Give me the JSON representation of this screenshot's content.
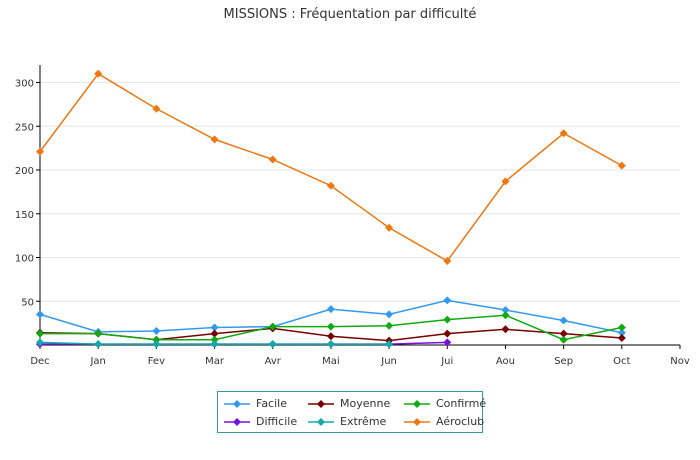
{
  "chart_data": {
    "type": "line",
    "title": "MISSIONS : Fréquentation par difficulté",
    "categories": [
      "Dec",
      "Jan",
      "Fev",
      "Mar",
      "Avr",
      "Mai",
      "Jun",
      "Jui",
      "Aou",
      "Sep",
      "Oct",
      "Nov"
    ],
    "ylim": [
      0,
      320
    ],
    "yticks": [
      50,
      100,
      150,
      200,
      250,
      300
    ],
    "grid": true,
    "legend_placement": "bottom",
    "series": [
      {
        "name": "Facile",
        "color": "#3399ee",
        "values": [
          35,
          15,
          16,
          20,
          21,
          41,
          35,
          51,
          40,
          28,
          14,
          null
        ]
      },
      {
        "name": "Moyenne",
        "color": "#770000",
        "values": [
          14,
          13,
          6,
          13,
          19,
          10,
          5,
          13,
          18,
          13,
          8,
          null
        ]
      },
      {
        "name": "Confirmé",
        "color": "#11aa11",
        "values": [
          13,
          13,
          6,
          6,
          21,
          21,
          22,
          29,
          34,
          6,
          20,
          null
        ]
      },
      {
        "name": "Difficile",
        "color": "#7711dd",
        "values": [
          1,
          1,
          1,
          1,
          1,
          1,
          1,
          3,
          null,
          null,
          null,
          null
        ]
      },
      {
        "name": "Extrême",
        "color": "#11aaaa",
        "values": [
          3,
          1,
          1,
          1,
          1,
          1,
          1,
          null,
          null,
          null,
          null,
          null
        ]
      },
      {
        "name": "Aéroclub",
        "color": "#ee7711",
        "values": [
          221,
          310,
          270,
          235,
          212,
          182,
          134,
          96,
          187,
          242,
          205,
          null
        ]
      }
    ]
  }
}
